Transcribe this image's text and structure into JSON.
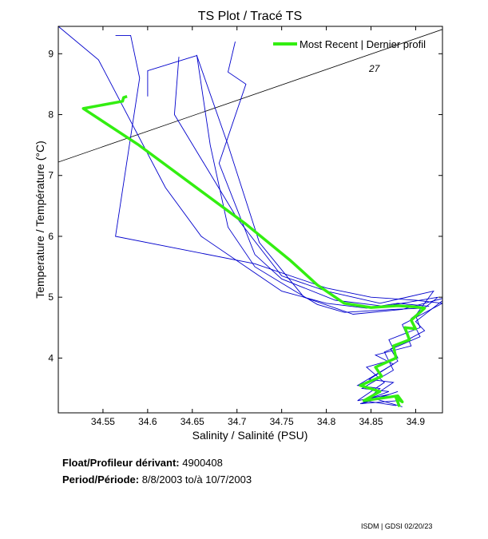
{
  "chart_data": {
    "type": "line",
    "title": "TS Plot / Tracé TS",
    "xlabel": "Salinity / Salinité (PSU)",
    "ylabel": "Temperature / Température (°C)",
    "xlim": [
      34.5,
      34.93
    ],
    "ylim": [
      3.1,
      9.45
    ],
    "xticks": [
      34.55,
      34.6,
      34.65,
      34.7,
      34.75,
      34.8,
      34.85,
      34.9
    ],
    "xtick_labels": [
      "34.55",
      "34.6",
      "34.65",
      "34.7",
      "34.75",
      "34.8",
      "34.85",
      "34.9"
    ],
    "yticks": [
      4,
      5,
      6,
      7,
      8,
      9
    ],
    "ytick_labels": [
      "4",
      "5",
      "6",
      "7",
      "8",
      "9"
    ],
    "grid": false,
    "legend_position": "top-right",
    "density_contour": {
      "label": "27",
      "x": [
        34.5,
        34.93
      ],
      "y": [
        7.22,
        9.4
      ]
    },
    "series": [
      {
        "name": "",
        "color": "#0000cc",
        "role": "earlier profiles",
        "profiles": [
          {
            "x": [
              34.5,
              34.545,
              34.62,
              34.66,
              34.72,
              34.75,
              34.8,
              34.845,
              34.88,
              34.915
            ],
            "y": [
              9.45,
              8.9,
              6.8,
              6.0,
              5.4,
              5.1,
              4.9,
              4.82,
              4.9,
              4.85
            ]
          },
          {
            "x": [
              34.564,
              34.581,
              34.591,
              34.564,
              34.72,
              34.8,
              34.85,
              34.9,
              34.93,
              34.885,
              34.895,
              34.855,
              34.875,
              34.835,
              34.86,
              34.84,
              34.88
            ],
            "y": [
              9.3,
              9.3,
              8.6,
              6.0,
              5.55,
              5.15,
              5.0,
              4.95,
              4.9,
              4.55,
              4.2,
              4.05,
              3.9,
              3.55,
              3.5,
              3.25,
              3.45
            ]
          },
          {
            "x": [
              34.635,
              34.63,
              34.7,
              34.75,
              34.8,
              34.86,
              34.92,
              34.9,
              34.905,
              34.87,
              34.88,
              34.845,
              34.865,
              34.835,
              34.87,
              34.838,
              34.88
            ],
            "y": [
              8.95,
              8.0,
              6.3,
              5.35,
              5.1,
              4.9,
              5.1,
              4.7,
              4.5,
              4.3,
              4.0,
              3.85,
              3.6,
              3.3,
              3.4,
              3.25,
              3.3
            ]
          },
          {
            "x": [
              34.698,
              34.69,
              34.71,
              34.68,
              34.72,
              34.75,
              34.81,
              34.865,
              34.925,
              34.895,
              34.905,
              34.865,
              34.875,
              34.84,
              34.87,
              34.842,
              34.878
            ],
            "y": [
              9.2,
              8.7,
              8.5,
              7.2,
              5.7,
              5.3,
              4.95,
              4.85,
              5.0,
              4.65,
              4.35,
              4.1,
              3.8,
              3.5,
              3.45,
              3.3,
              3.22
            ]
          },
          {
            "x": [
              34.6,
              34.6,
              34.655,
              34.69,
              34.725,
              34.775,
              34.83,
              34.885,
              34.935,
              34.9,
              34.91,
              34.872,
              34.88,
              34.848,
              34.875,
              34.85,
              34.885
            ],
            "y": [
              8.3,
              8.72,
              8.97,
              7.5,
              5.9,
              5.0,
              4.72,
              4.8,
              5.0,
              4.6,
              4.45,
              4.15,
              3.95,
              3.65,
              3.6,
              3.35,
              3.2
            ]
          },
          {
            "x": [
              34.655,
              34.67,
              34.69,
              34.72,
              34.765,
              34.79,
              34.82,
              34.875,
              34.91
            ],
            "y": [
              8.98,
              7.5,
              6.15,
              5.5,
              5.1,
              4.88,
              4.75,
              4.8,
              4.82
            ]
          }
        ]
      },
      {
        "name": "Most Recent | Dernier profil",
        "color": "#33ee11",
        "x": [
          34.577,
          34.573,
          34.572,
          34.528,
          34.59,
          34.65,
          34.71,
          34.76,
          34.79,
          34.82,
          34.85,
          34.88,
          34.9,
          34.91,
          34.895,
          34.9,
          34.888,
          34.893,
          34.875,
          34.878,
          34.855,
          34.862,
          34.838,
          34.86,
          34.842,
          34.88,
          34.885,
          34.878,
          34.882
        ],
        "y": [
          8.3,
          8.28,
          8.22,
          8.1,
          7.5,
          6.85,
          6.2,
          5.6,
          5.2,
          4.9,
          4.83,
          4.86,
          4.84,
          4.82,
          4.62,
          4.48,
          4.5,
          4.3,
          4.2,
          4.0,
          3.85,
          3.7,
          3.55,
          3.45,
          3.3,
          3.38,
          3.28,
          3.35,
          3.2
        ]
      }
    ]
  },
  "info": {
    "float_label": "Float/Profileur dérivant:",
    "float_value": "4900408",
    "period_label": "Period/Période:",
    "period_value": "8/8/2003  to/à  10/7/2003"
  },
  "credit": "ISDM | GDSI  02/20/23"
}
